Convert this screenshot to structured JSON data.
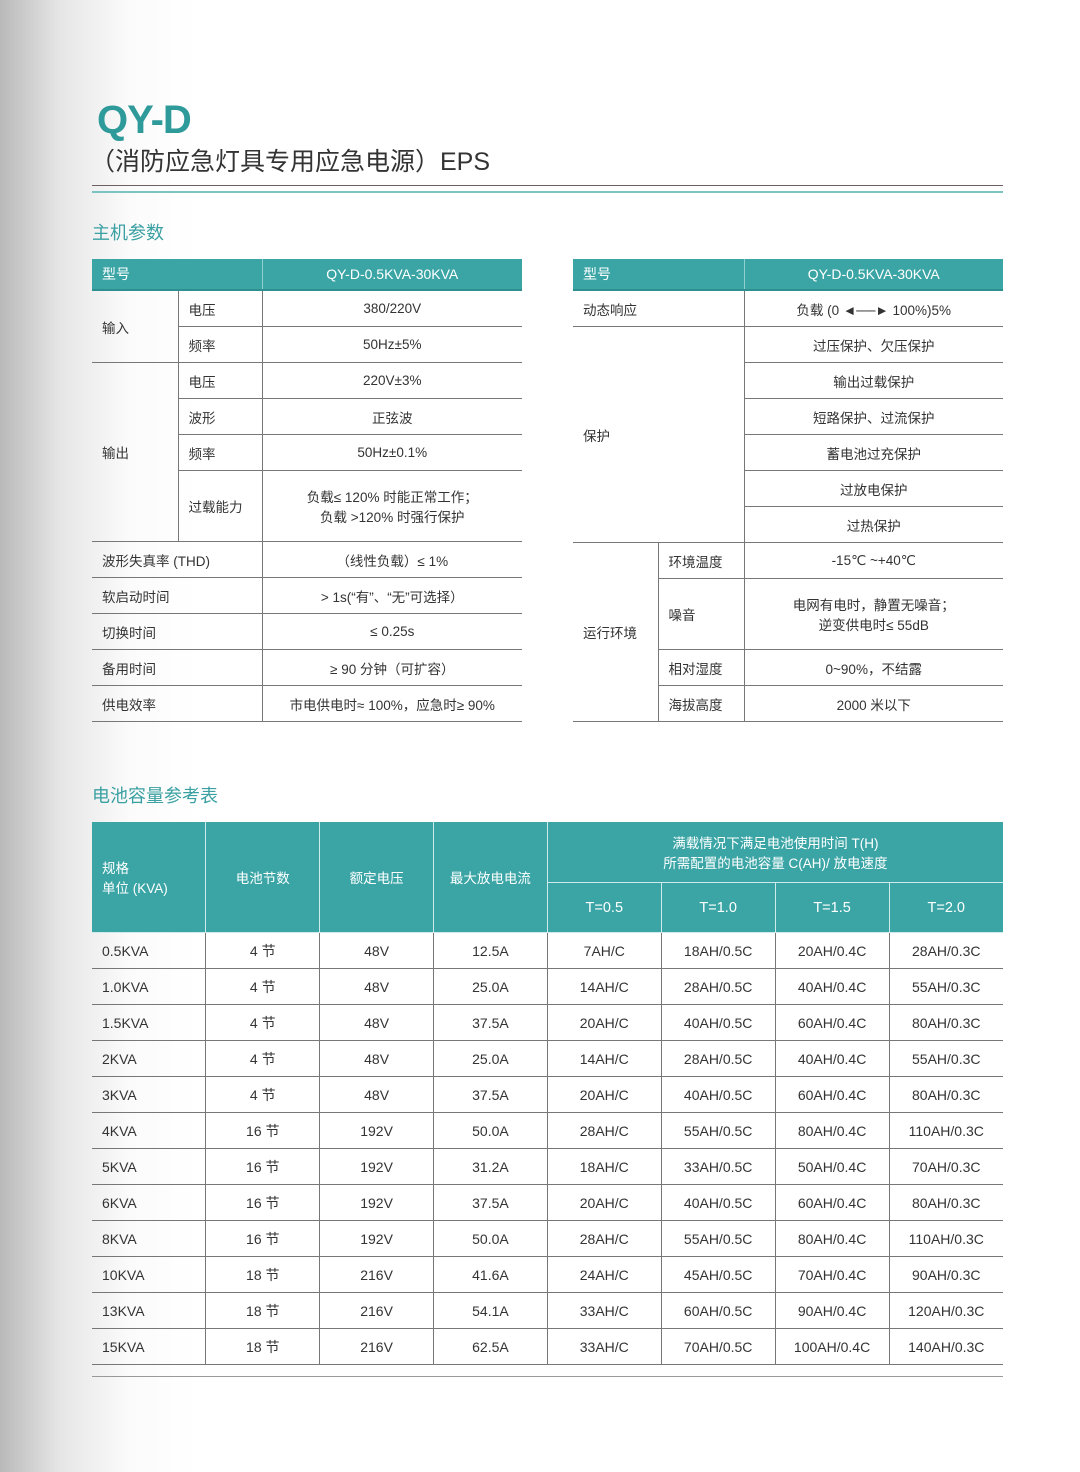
{
  "header": {
    "logo": "QY-D",
    "subtitle": "（消防应急灯具专用应急电源）EPS"
  },
  "section1": {
    "title": "主机参数"
  },
  "left_table": {
    "head_label": "型号",
    "head_value": "QY-D-0.5KVA-30KVA",
    "input": {
      "label": "输入",
      "voltage_label": "电压",
      "voltage": "380/220V",
      "freq_label": "频率",
      "freq": "50Hz±5%"
    },
    "output": {
      "label": "输出",
      "voltage_label": "电压",
      "voltage": "220V±3%",
      "wave_label": "波形",
      "wave": "正弦波",
      "freq_label": "频率",
      "freq": "50Hz±0.1%",
      "overload_label": "过载能力",
      "overload_1": "负载≤ 120% 时能正常工作；",
      "overload_2": "负载 >120% 时强行保护"
    },
    "rows": [
      {
        "label": "波形失真率 (THD)",
        "value": "（线性负载）≤ 1%"
      },
      {
        "label": "软启动时间",
        "value": "> 1s(“有”、“无”可选择）"
      },
      {
        "label": "切换时间",
        "value": "≤ 0.25s"
      },
      {
        "label": "备用时间",
        "value": "≥ 90 分钟（可扩容）"
      },
      {
        "label": "供电效率",
        "value": "市电供电时≈ 100%，应急时≥ 90%"
      }
    ]
  },
  "right_table": {
    "head_label": "型号",
    "head_value": "QY-D-0.5KVA-30KVA",
    "dynamic_label": "动态响应",
    "dynamic_value": "负载 (0 ◄──► 100%)5%",
    "protect_label": "保护",
    "protections": [
      "过压保护、欠压保护",
      "输出过载保护",
      "短路保护、过流保护",
      "蓄电池过充保护",
      "过放电保护",
      "过热保护"
    ],
    "env_label": "运行环境",
    "env": {
      "temp_label": "环境温度",
      "temp": "-15℃ ~+40℃",
      "noise_label": "噪音",
      "noise_1": "电网有电时，静置无噪音；",
      "noise_2": "逆变供电时≤ 55dB",
      "humidity_label": "相对湿度",
      "humidity": "0~90%，不结露",
      "altitude_label": "海拔高度",
      "altitude": "2000 米以下"
    }
  },
  "section2": {
    "title": "电池容量参考表"
  },
  "battery_table": {
    "head": {
      "spec_1": "规格",
      "spec_2": "单位 (KVA)",
      "cells": "电池节数",
      "voltage": "额定电压",
      "current": "最大放电电流",
      "group_1": "满载情况下满足电池使用时间 T(H)",
      "group_2": "所需配置的电池容量 C(AH)/ 放电速度",
      "t": [
        "T=0.5",
        "T=1.0",
        "T=1.5",
        "T=2.0"
      ]
    },
    "rows": [
      [
        "0.5KVA",
        "4 节",
        "48V",
        "12.5A",
        "7AH/C",
        "18AH/0.5C",
        "20AH/0.4C",
        "28AH/0.3C"
      ],
      [
        "1.0KVA",
        "4 节",
        "48V",
        "25.0A",
        "14AH/C",
        "28AH/0.5C",
        "40AH/0.4C",
        "55AH/0.3C"
      ],
      [
        "1.5KVA",
        "4 节",
        "48V",
        "37.5A",
        "20AH/C",
        "40AH/0.5C",
        "60AH/0.4C",
        "80AH/0.3C"
      ],
      [
        "2KVA",
        "4 节",
        "48V",
        "25.0A",
        "14AH/C",
        "28AH/0.5C",
        "40AH/0.4C",
        "55AH/0.3C"
      ],
      [
        "3KVA",
        "4 节",
        "48V",
        "37.5A",
        "20AH/C",
        "40AH/0.5C",
        "60AH/0.4C",
        "80AH/0.3C"
      ],
      [
        "4KVA",
        "16 节",
        "192V",
        "50.0A",
        "28AH/C",
        "55AH/0.5C",
        "80AH/0.4C",
        "110AH/0.3C"
      ],
      [
        "5KVA",
        "16 节",
        "192V",
        "31.2A",
        "18AH/C",
        "33AH/0.5C",
        "50AH/0.4C",
        "70AH/0.3C"
      ],
      [
        "6KVA",
        "16 节",
        "192V",
        "37.5A",
        "20AH/C",
        "40AH/0.5C",
        "60AH/0.4C",
        "80AH/0.3C"
      ],
      [
        "8KVA",
        "16 节",
        "192V",
        "50.0A",
        "28AH/C",
        "55AH/0.5C",
        "80AH/0.4C",
        "110AH/0.3C"
      ],
      [
        "10KVA",
        "18 节",
        "216V",
        "41.6A",
        "24AH/C",
        "45AH/0.5C",
        "70AH/0.4C",
        "90AH/0.3C"
      ],
      [
        "13KVA",
        "18 节",
        "216V",
        "54.1A",
        "33AH/C",
        "60AH/0.5C",
        "90AH/0.4C",
        "120AH/0.3C"
      ],
      [
        "15KVA",
        "18 节",
        "216V",
        "62.5A",
        "33AH/C",
        "70AH/0.5C",
        "100AH/0.4C",
        "140AH/0.3C"
      ]
    ]
  },
  "colors": {
    "accent": "#3ba5a6",
    "title": "#2f9a9a"
  }
}
